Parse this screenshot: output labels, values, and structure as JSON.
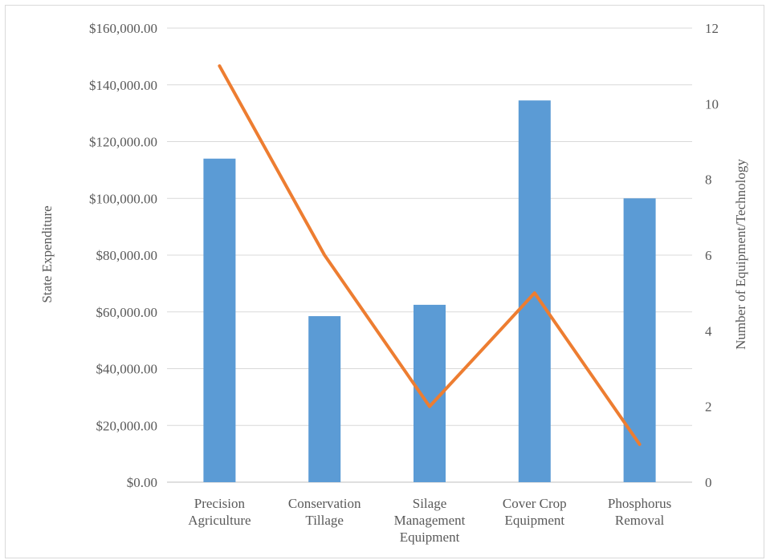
{
  "chart_data": {
    "type": "bar",
    "categories": [
      [
        "Precision",
        "Agriculture"
      ],
      [
        "Conservation",
        "Tillage"
      ],
      [
        "Silage",
        "Management",
        "Equipment"
      ],
      [
        "Cover Crop",
        "Equipment"
      ],
      [
        "Phosphorus",
        "Removal"
      ]
    ],
    "series": [
      {
        "type": "bar",
        "axis": "left",
        "values": [
          114000,
          58500,
          62500,
          134500,
          100000
        ],
        "color": "#5b9bd5"
      },
      {
        "type": "line",
        "axis": "right",
        "values": [
          11,
          6,
          2,
          5,
          1
        ],
        "color": "#ed7d31"
      }
    ],
    "ylabel": "State Expenditure",
    "y2label": "Number of Equipment/Technology",
    "ylim": [
      0,
      160000
    ],
    "y2lim": [
      0,
      12
    ],
    "yticks": [
      "$0.00",
      "$20,000.00",
      "$40,000.00",
      "$60,000.00",
      "$80,000.00",
      "$100,000.00",
      "$120,000.00",
      "$140,000.00",
      "$160,000.00"
    ],
    "y2ticks": [
      "0",
      "2",
      "4",
      "6",
      "8",
      "10",
      "12"
    ],
    "grid": true,
    "legend": "none"
  }
}
